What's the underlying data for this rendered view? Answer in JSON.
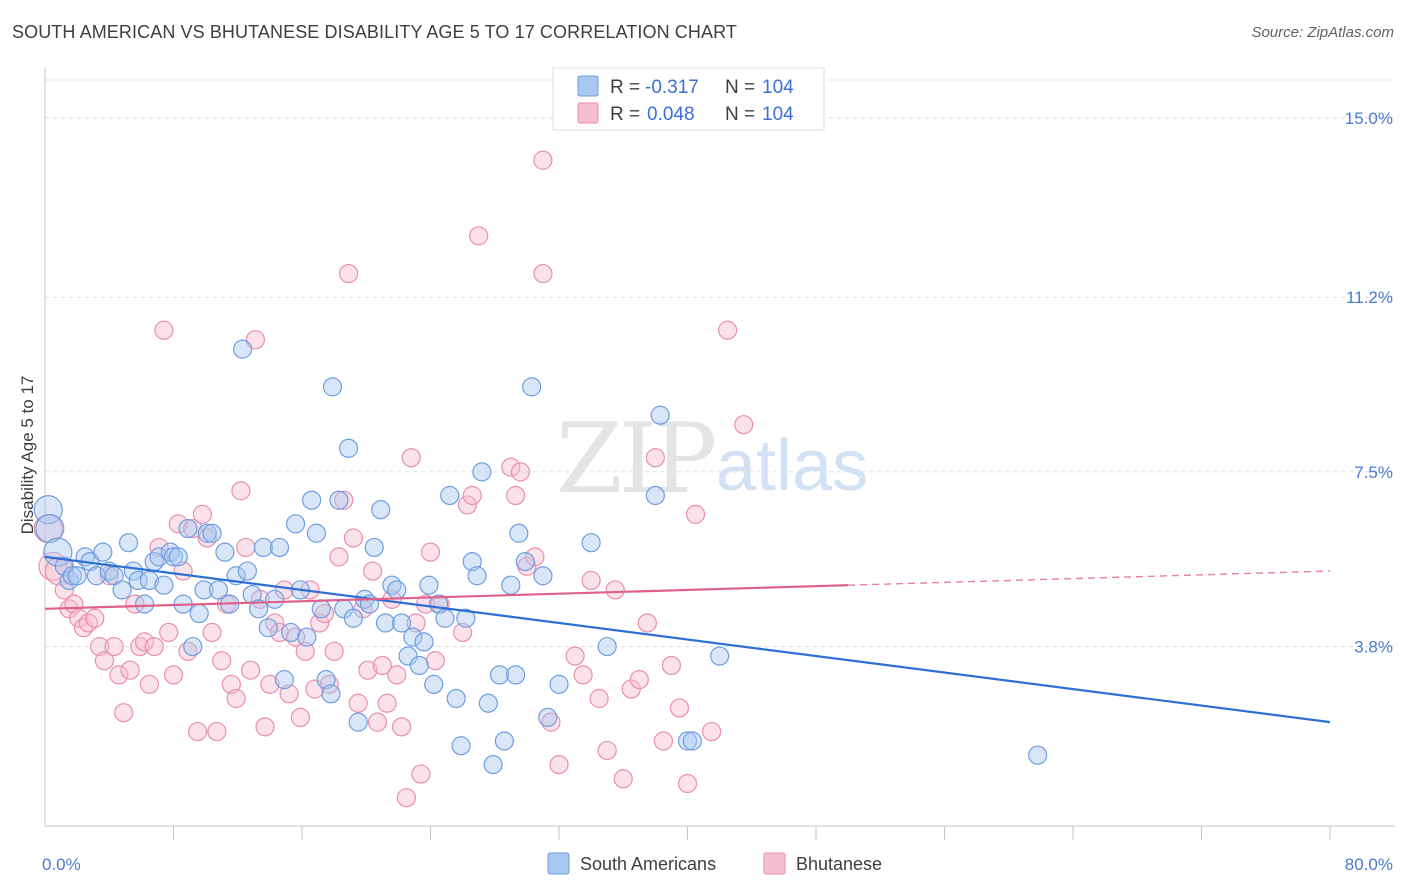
{
  "title": "SOUTH AMERICAN VS BHUTANESE DISABILITY AGE 5 TO 17 CORRELATION CHART",
  "source": "Source: ZipAtlas.com",
  "watermark": {
    "zip": "ZIP",
    "atlas": "atlas"
  },
  "legend": {
    "r_label": "R =",
    "n_label": "N =",
    "rows": [
      {
        "r": "-0.317",
        "n": "104"
      },
      {
        "r": "0.048",
        "n": "104"
      }
    ]
  },
  "colors": {
    "south_american_fill": "#a9c8f0",
    "south_american_stroke": "#6f9ee0",
    "south_american_line": "#2e6fd6",
    "bhutanese_fill": "#f6bfd0",
    "bhutanese_stroke": "#ea8fac",
    "bhutanese_line": "#e0608a",
    "grid": "#dadce0",
    "tick_label": "#4a7bd0"
  },
  "chart_data": {
    "type": "scatter",
    "title": "SOUTH AMERICAN VS BHUTANESE DISABILITY AGE 5 TO 17 CORRELATION CHART",
    "xlabel": "",
    "ylabel": "Disability Age 5 to 17",
    "xlim": [
      0,
      80
    ],
    "ylim": [
      0,
      15.8
    ],
    "x_tick_labels": [
      "0.0%",
      "80.0%"
    ],
    "y_ticks": [
      3.8,
      7.5,
      11.2,
      15.0
    ],
    "y_tick_labels": [
      "3.8%",
      "7.5%",
      "11.2%",
      "15.0%"
    ],
    "grid": "horizontal dashed",
    "legend_position": "top-center",
    "series": [
      {
        "name": "South Americans",
        "r": -0.317,
        "n": 104,
        "trend": {
          "x": [
            0,
            80
          ],
          "y": [
            5.7,
            2.2
          ]
        },
        "points": [
          [
            0.2,
            6.7
          ],
          [
            0.3,
            6.3
          ],
          [
            0.8,
            5.8
          ],
          [
            1.2,
            5.5
          ],
          [
            1.5,
            5.2
          ],
          [
            1.7,
            5.3
          ],
          [
            2.0,
            5.3
          ],
          [
            2.5,
            5.7
          ],
          [
            2.8,
            5.6
          ],
          [
            3.2,
            5.3
          ],
          [
            3.6,
            5.8
          ],
          [
            4.0,
            5.4
          ],
          [
            4.3,
            5.3
          ],
          [
            4.8,
            5.0
          ],
          [
            5.2,
            6.0
          ],
          [
            5.5,
            5.4
          ],
          [
            5.8,
            5.2
          ],
          [
            6.2,
            4.7
          ],
          [
            6.5,
            5.2
          ],
          [
            6.8,
            5.6
          ],
          [
            7.1,
            5.7
          ],
          [
            7.4,
            5.1
          ],
          [
            7.8,
            5.8
          ],
          [
            8.0,
            5.7
          ],
          [
            8.3,
            5.7
          ],
          [
            8.6,
            4.7
          ],
          [
            8.9,
            6.3
          ],
          [
            9.2,
            3.8
          ],
          [
            9.6,
            4.5
          ],
          [
            9.9,
            5.0
          ],
          [
            10.1,
            6.2
          ],
          [
            10.4,
            6.2
          ],
          [
            10.8,
            5.0
          ],
          [
            11.2,
            5.8
          ],
          [
            11.5,
            4.7
          ],
          [
            11.9,
            5.3
          ],
          [
            12.3,
            10.1
          ],
          [
            12.6,
            5.4
          ],
          [
            12.9,
            4.9
          ],
          [
            13.3,
            4.6
          ],
          [
            13.6,
            5.9
          ],
          [
            13.9,
            4.2
          ],
          [
            14.3,
            4.8
          ],
          [
            14.6,
            5.9
          ],
          [
            14.9,
            3.1
          ],
          [
            15.3,
            4.1
          ],
          [
            15.6,
            6.4
          ],
          [
            15.9,
            5.0
          ],
          [
            16.3,
            4.0
          ],
          [
            16.6,
            6.9
          ],
          [
            16.9,
            6.2
          ],
          [
            17.2,
            4.6
          ],
          [
            17.5,
            3.1
          ],
          [
            17.8,
            2.8
          ],
          [
            17.9,
            9.3
          ],
          [
            18.3,
            6.9
          ],
          [
            18.6,
            4.6
          ],
          [
            18.9,
            8.0
          ],
          [
            19.2,
            4.4
          ],
          [
            19.5,
            2.2
          ],
          [
            19.9,
            4.8
          ],
          [
            20.2,
            4.7
          ],
          [
            20.5,
            5.9
          ],
          [
            20.9,
            6.7
          ],
          [
            21.2,
            4.3
          ],
          [
            21.6,
            5.1
          ],
          [
            21.9,
            5.0
          ],
          [
            22.2,
            4.3
          ],
          [
            22.6,
            3.6
          ],
          [
            22.9,
            4.0
          ],
          [
            23.3,
            3.4
          ],
          [
            23.6,
            3.9
          ],
          [
            23.9,
            5.1
          ],
          [
            24.2,
            3.0
          ],
          [
            24.5,
            4.7
          ],
          [
            24.9,
            4.4
          ],
          [
            25.2,
            7.0
          ],
          [
            25.6,
            2.7
          ],
          [
            25.9,
            1.7
          ],
          [
            26.2,
            4.4
          ],
          [
            26.6,
            5.6
          ],
          [
            26.9,
            5.3
          ],
          [
            27.2,
            7.5
          ],
          [
            27.6,
            2.6
          ],
          [
            27.9,
            1.3
          ],
          [
            28.3,
            3.2
          ],
          [
            28.6,
            1.8
          ],
          [
            29.0,
            5.1
          ],
          [
            29.3,
            3.2
          ],
          [
            29.5,
            6.2
          ],
          [
            29.9,
            5.6
          ],
          [
            30.3,
            9.3
          ],
          [
            31.0,
            5.3
          ],
          [
            31.3,
            2.3
          ],
          [
            32.0,
            3.0
          ],
          [
            34.0,
            6.0
          ],
          [
            35.0,
            3.8
          ],
          [
            38.0,
            7.0
          ],
          [
            38.3,
            8.7
          ],
          [
            40.0,
            1.8
          ],
          [
            40.3,
            1.8
          ],
          [
            42.0,
            3.6
          ],
          [
            61.8,
            1.5
          ]
        ]
      },
      {
        "name": "Bhutanese",
        "r": 0.048,
        "n": 104,
        "trend": {
          "x": [
            0,
            50
          ],
          "y": [
            4.6,
            5.1
          ]
        },
        "trend_dashed": {
          "x": [
            50,
            80
          ],
          "y": [
            5.1,
            5.4
          ]
        },
        "points": [
          [
            0.2,
            6.3
          ],
          [
            0.5,
            5.5
          ],
          [
            0.9,
            5.4
          ],
          [
            1.2,
            5.0
          ],
          [
            1.5,
            4.6
          ],
          [
            1.8,
            4.7
          ],
          [
            2.1,
            4.4
          ],
          [
            2.4,
            4.2
          ],
          [
            2.7,
            4.3
          ],
          [
            3.1,
            4.4
          ],
          [
            3.4,
            3.8
          ],
          [
            3.7,
            3.5
          ],
          [
            4.0,
            5.3
          ],
          [
            4.3,
            3.8
          ],
          [
            4.6,
            3.2
          ],
          [
            4.9,
            2.4
          ],
          [
            5.3,
            3.3
          ],
          [
            5.6,
            4.7
          ],
          [
            5.9,
            3.8
          ],
          [
            6.2,
            3.9
          ],
          [
            6.5,
            3.0
          ],
          [
            6.8,
            3.8
          ],
          [
            7.1,
            5.9
          ],
          [
            7.4,
            10.5
          ],
          [
            7.7,
            4.1
          ],
          [
            8.0,
            3.2
          ],
          [
            8.3,
            6.4
          ],
          [
            8.6,
            5.4
          ],
          [
            8.9,
            3.7
          ],
          [
            9.2,
            6.3
          ],
          [
            9.5,
            2.0
          ],
          [
            9.8,
            6.6
          ],
          [
            10.1,
            6.1
          ],
          [
            10.4,
            4.1
          ],
          [
            10.7,
            2.0
          ],
          [
            11.0,
            3.5
          ],
          [
            11.3,
            4.7
          ],
          [
            11.6,
            3.0
          ],
          [
            11.9,
            2.7
          ],
          [
            12.2,
            7.1
          ],
          [
            12.5,
            5.9
          ],
          [
            12.8,
            3.3
          ],
          [
            13.1,
            10.3
          ],
          [
            13.4,
            4.8
          ],
          [
            13.7,
            2.1
          ],
          [
            14.0,
            3.0
          ],
          [
            14.3,
            4.3
          ],
          [
            14.6,
            4.1
          ],
          [
            14.9,
            5.0
          ],
          [
            15.2,
            2.8
          ],
          [
            15.6,
            4.0
          ],
          [
            15.9,
            2.3
          ],
          [
            16.2,
            3.7
          ],
          [
            16.5,
            5.0
          ],
          [
            16.8,
            2.9
          ],
          [
            17.1,
            4.3
          ],
          [
            17.4,
            4.5
          ],
          [
            17.7,
            3.0
          ],
          [
            18.0,
            3.7
          ],
          [
            18.3,
            5.7
          ],
          [
            18.6,
            6.9
          ],
          [
            18.9,
            11.7
          ],
          [
            19.2,
            6.1
          ],
          [
            19.5,
            2.6
          ],
          [
            19.8,
            4.6
          ],
          [
            20.1,
            3.3
          ],
          [
            20.4,
            5.4
          ],
          [
            20.7,
            2.2
          ],
          [
            21.0,
            3.4
          ],
          [
            21.3,
            2.6
          ],
          [
            21.6,
            4.8
          ],
          [
            21.9,
            3.2
          ],
          [
            22.2,
            2.1
          ],
          [
            22.5,
            0.6
          ],
          [
            22.8,
            7.8
          ],
          [
            23.1,
            4.3
          ],
          [
            23.4,
            1.1
          ],
          [
            23.7,
            4.7
          ],
          [
            24.0,
            5.8
          ],
          [
            24.3,
            3.5
          ],
          [
            24.6,
            4.7
          ],
          [
            26.0,
            4.1
          ],
          [
            26.3,
            6.8
          ],
          [
            26.6,
            7.0
          ],
          [
            27.0,
            12.5
          ],
          [
            29.0,
            7.6
          ],
          [
            29.3,
            7.0
          ],
          [
            29.6,
            7.5
          ],
          [
            30.0,
            5.5
          ],
          [
            30.5,
            5.7
          ],
          [
            31.0,
            14.1
          ],
          [
            31.0,
            11.7
          ],
          [
            31.5,
            2.2
          ],
          [
            32.0,
            1.3
          ],
          [
            33.0,
            3.6
          ],
          [
            33.5,
            3.2
          ],
          [
            34.0,
            5.2
          ],
          [
            34.5,
            2.7
          ],
          [
            35.0,
            1.6
          ],
          [
            35.5,
            5.0
          ],
          [
            36.0,
            1.0
          ],
          [
            36.5,
            2.9
          ],
          [
            37.0,
            3.1
          ],
          [
            37.5,
            4.3
          ],
          [
            38.0,
            7.8
          ],
          [
            38.5,
            1.8
          ],
          [
            39.0,
            3.4
          ],
          [
            39.5,
            2.5
          ],
          [
            40.0,
            0.9
          ],
          [
            40.5,
            6.6
          ],
          [
            41.5,
            2.0
          ],
          [
            42.5,
            10.5
          ],
          [
            43.5,
            8.5
          ]
        ]
      }
    ],
    "bottom_legend": [
      "South Americans",
      "Bhutanese"
    ]
  }
}
